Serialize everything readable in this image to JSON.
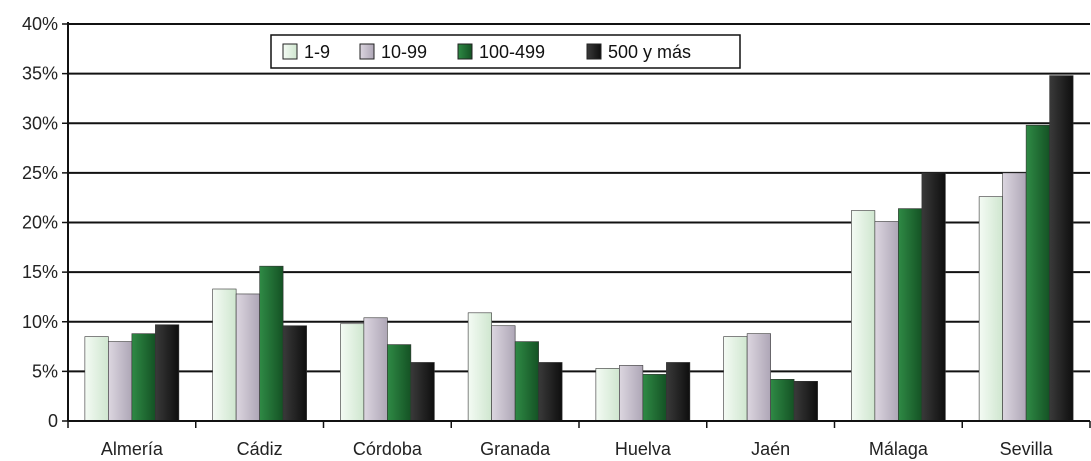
{
  "chart_data": {
    "type": "bar",
    "title": "",
    "xlabel": "",
    "ylabel": "",
    "ylim": [
      0,
      40
    ],
    "y_ticks": [
      "0",
      "5%",
      "10%",
      "15%",
      "20%",
      "25%",
      "30%",
      "35%",
      "40%"
    ],
    "grid": true,
    "legend_position": "top-center",
    "categories": [
      "Almería",
      "Cádiz",
      "Córdoba",
      "Granada",
      "Huelva",
      "Jaén",
      "Málaga",
      "Sevilla"
    ],
    "series": [
      {
        "name": "1-9",
        "color": "#e4f3e4",
        "values": [
          8.5,
          13.3,
          9.8,
          10.9,
          5.3,
          8.5,
          21.2,
          22.6
        ]
      },
      {
        "name": "10-99",
        "color": "#c9c2cf",
        "values": [
          8.0,
          12.8,
          10.4,
          9.6,
          5.6,
          8.8,
          20.1,
          25.0
        ]
      },
      {
        "name": "100-499",
        "color": "#1f6b32",
        "values": [
          8.8,
          15.6,
          7.7,
          8.0,
          4.7,
          4.2,
          21.4,
          29.8
        ]
      },
      {
        "name": "500 y más",
        "color": "#1c1c1c",
        "values": [
          9.7,
          9.6,
          5.9,
          5.9,
          5.9,
          4.0,
          25.0,
          34.8
        ]
      }
    ]
  }
}
